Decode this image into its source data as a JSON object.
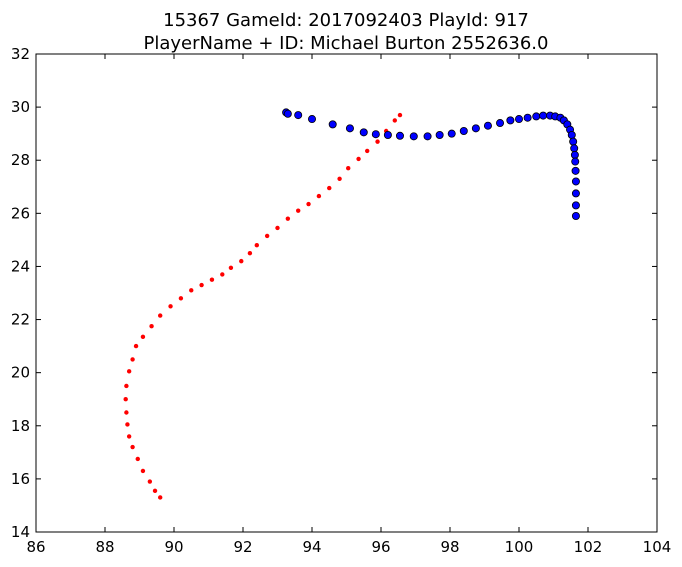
{
  "chart_data": {
    "type": "scatter",
    "title_line1": "15367 GameId: 2017092403 PlayId: 917",
    "title_line2": "PlayerName + ID: Michael Burton 2552636.0",
    "xlabel": "",
    "ylabel": "",
    "xlim": [
      86,
      104
    ],
    "ylim": [
      14,
      32
    ],
    "xticks": [
      86,
      88,
      90,
      92,
      94,
      96,
      98,
      100,
      102,
      104
    ],
    "yticks": [
      14,
      16,
      18,
      20,
      22,
      24,
      26,
      28,
      30,
      32
    ],
    "grid": false,
    "legend": "none",
    "series": [
      {
        "color": "#ff0000",
        "marker": "small-dot",
        "x": [
          96.55,
          96.4,
          96.15,
          95.9,
          95.6,
          95.35,
          95.05,
          94.8,
          94.5,
          94.2,
          93.9,
          93.6,
          93.3,
          93.0,
          92.7,
          92.4,
          92.2,
          91.95,
          91.65,
          91.4,
          91.1,
          90.8,
          90.5,
          90.2,
          89.9,
          89.6,
          89.35,
          89.1,
          88.9,
          88.8,
          88.7,
          88.62,
          88.6,
          88.62,
          88.65,
          88.7,
          88.8,
          88.95,
          89.1,
          89.3,
          89.45,
          89.6
        ],
        "y": [
          29.7,
          29.5,
          29.1,
          28.7,
          28.35,
          28.05,
          27.7,
          27.3,
          26.95,
          26.65,
          26.35,
          26.1,
          25.8,
          25.45,
          25.15,
          24.8,
          24.5,
          24.2,
          23.95,
          23.7,
          23.5,
          23.3,
          23.1,
          22.8,
          22.5,
          22.15,
          21.75,
          21.35,
          21.0,
          20.5,
          20.05,
          19.5,
          19.0,
          18.5,
          18.05,
          17.6,
          17.2,
          16.75,
          16.3,
          15.9,
          15.55,
          15.3
        ]
      },
      {
        "color": "#0000ff",
        "marker": "circle",
        "x": [
          93.25,
          93.3,
          93.6,
          94.0,
          94.6,
          95.1,
          95.5,
          95.85,
          96.2,
          96.55,
          96.95,
          97.35,
          97.7,
          98.05,
          98.4,
          98.75,
          99.1,
          99.45,
          99.75,
          100.0,
          100.25,
          100.5,
          100.7,
          100.9,
          101.05,
          101.2,
          101.3,
          101.4,
          101.48,
          101.53,
          101.57,
          101.6,
          101.62,
          101.63,
          101.64,
          101.65,
          101.65,
          101.65,
          101.65
        ],
        "y": [
          29.8,
          29.75,
          29.7,
          29.55,
          29.35,
          29.2,
          29.05,
          28.98,
          28.95,
          28.92,
          28.9,
          28.9,
          28.95,
          29.0,
          29.1,
          29.2,
          29.3,
          29.4,
          29.5,
          29.55,
          29.6,
          29.65,
          29.68,
          29.68,
          29.65,
          29.6,
          29.5,
          29.35,
          29.15,
          28.95,
          28.7,
          28.45,
          28.2,
          27.95,
          27.6,
          27.2,
          26.75,
          26.3,
          25.9
        ]
      }
    ]
  }
}
